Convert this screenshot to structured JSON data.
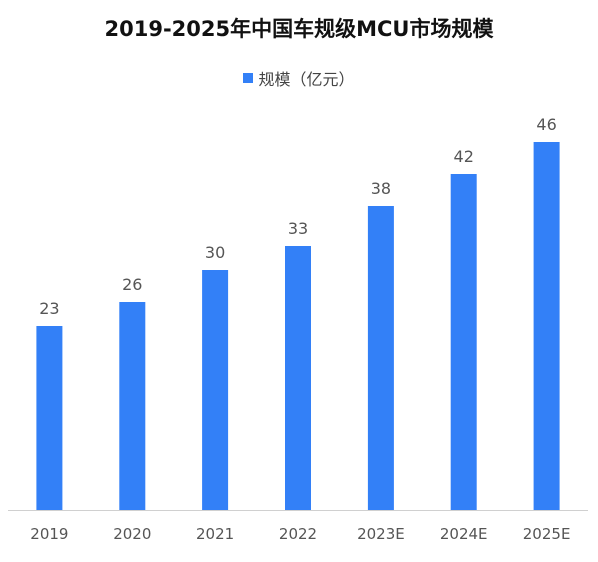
{
  "chart_data": {
    "type": "bar",
    "title": "2019-2025年中国车规级MCU市场规模",
    "categories": [
      "2019",
      "2020",
      "2021",
      "2022",
      "2023E",
      "2024E",
      "2025E"
    ],
    "series": [
      {
        "name": "规模（亿元）",
        "values": [
          23,
          26,
          30,
          33,
          38,
          42,
          46
        ],
        "color": "#3380F7"
      }
    ],
    "ylim": [
      0,
      50
    ],
    "grid": false,
    "show_data_labels": true,
    "legend_position": "top"
  },
  "colors": {
    "bar": "#3380F7",
    "axis": "#D0D0D0",
    "label_text": "#555555",
    "title_text": "#111111"
  }
}
